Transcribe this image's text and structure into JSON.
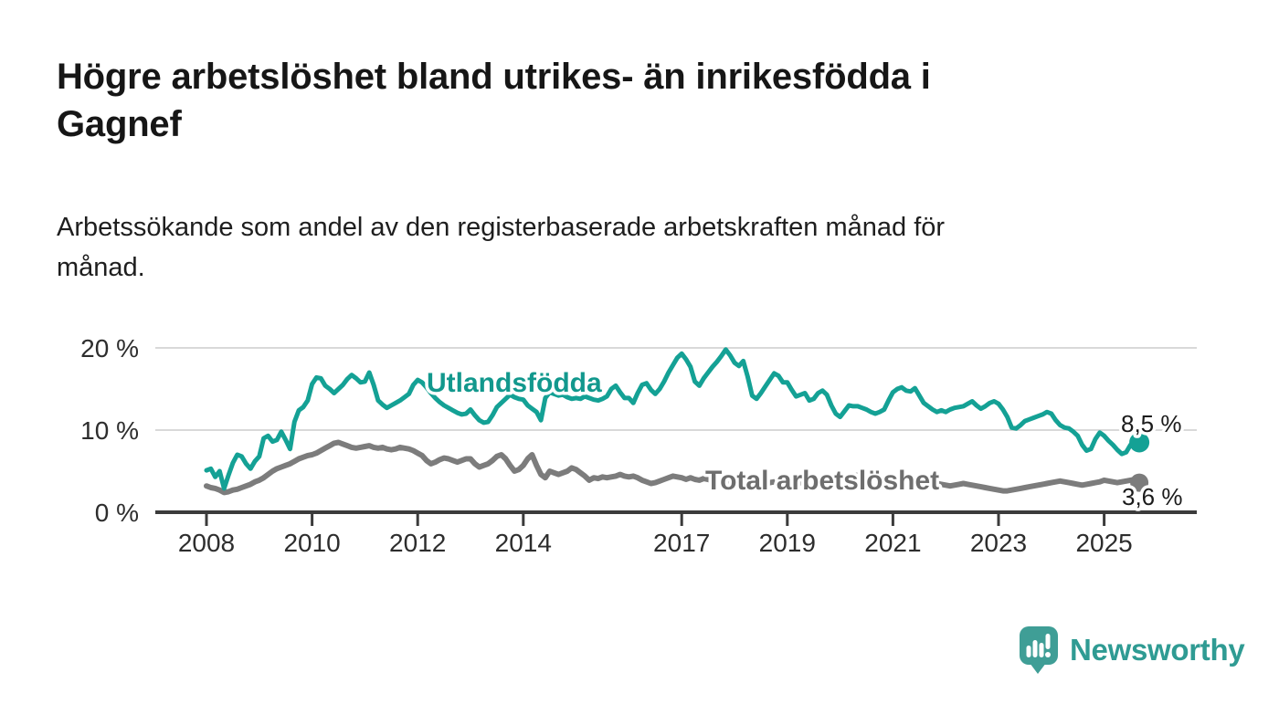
{
  "header": {
    "title_line1": "Högre arbetslöshet bland utrikes- än inrikesfödda i",
    "title_line2": "Gagnef",
    "subtitle_line1": "Arbetssökande som andel av den registerbaserade arbetskraften månad för",
    "subtitle_line2": "månad."
  },
  "footer": {
    "brand": "Newsworthy"
  },
  "colors": {
    "teal_line": "#14A195",
    "teal_label": "#12988D",
    "gray_line": "#7C7C7C",
    "gray_label": "#6E6E6E",
    "axis": "#3B3B3B",
    "grid": "#D9D9D9",
    "logo_bubble": "#3F9E96",
    "logo_text": "#2F9B93"
  },
  "chart_data": {
    "type": "line",
    "title": "Högre arbetslöshet bland utrikes- än inrikesfödda i Gagnef",
    "subtitle": "Arbetssökande som andel av den registerbaserade arbetskraften månad för månad.",
    "xlabel": "",
    "ylabel": "",
    "ylim": [
      0,
      20
    ],
    "grid": "horizontal",
    "x_unit": "month",
    "x_start_year": 2008,
    "x_end": "2025-09",
    "x_ticks": [
      {
        "year": 2008,
        "label": "2008"
      },
      {
        "year": 2010,
        "label": "2010"
      },
      {
        "year": 2012,
        "label": "2012"
      },
      {
        "year": 2014,
        "label": "2014"
      },
      {
        "year": 2017,
        "label": "2017"
      },
      {
        "year": 2019,
        "label": "2019"
      },
      {
        "year": 2021,
        "label": "2021"
      },
      {
        "year": 2023,
        "label": "2023"
      },
      {
        "year": 2025,
        "label": "2025"
      }
    ],
    "y_ticks": [
      {
        "value": 0,
        "label": "0 %"
      },
      {
        "value": 10,
        "label": "10 %"
      },
      {
        "value": 20,
        "label": "20 %"
      }
    ],
    "series": [
      {
        "name": "Utlandsfödda",
        "color": "#14A195",
        "end_label": "8,5 %",
        "end_value": 8.5,
        "values": [
          5.1,
          5.3,
          4.3,
          5.0,
          2.9,
          4.5,
          6.0,
          7.0,
          6.8,
          5.9,
          5.3,
          6.2,
          6.8,
          9.0,
          9.3,
          8.6,
          8.8,
          9.8,
          8.8,
          7.7,
          11.0,
          12.4,
          12.8,
          13.6,
          15.6,
          16.4,
          16.3,
          15.4,
          15.0,
          14.5,
          15.0,
          15.5,
          16.2,
          16.7,
          16.3,
          15.8,
          15.9,
          17.0,
          15.5,
          13.6,
          13.1,
          12.7,
          13.0,
          13.3,
          13.6,
          14.0,
          14.4,
          15.5,
          16.1,
          15.8,
          15.2,
          14.5,
          13.9,
          13.4,
          13.0,
          12.7,
          12.4,
          12.1,
          11.9,
          12.0,
          12.5,
          11.8,
          11.2,
          10.9,
          11.0,
          11.8,
          12.8,
          13.3,
          13.8,
          14.3,
          14.0,
          13.8,
          13.7,
          13.0,
          12.6,
          12.2,
          11.2,
          13.9,
          14.6,
          14.4,
          14.2,
          14.3,
          14.0,
          13.8,
          13.9,
          13.8,
          14.1,
          13.9,
          13.7,
          13.6,
          13.8,
          14.1,
          15.0,
          15.4,
          14.6,
          13.9,
          13.9,
          13.3,
          14.5,
          15.5,
          15.7,
          14.9,
          14.4,
          15.0,
          15.9,
          17.0,
          17.9,
          18.8,
          19.3,
          18.6,
          17.7,
          15.9,
          15.4,
          16.3,
          17.0,
          17.7,
          18.3,
          19.0,
          19.8,
          19.1,
          18.2,
          17.8,
          18.4,
          16.5,
          14.2,
          13.8,
          14.5,
          15.3,
          16.1,
          16.9,
          16.6,
          15.8,
          15.8,
          14.9,
          14.1,
          14.3,
          14.5,
          13.6,
          13.8,
          14.5,
          14.8,
          14.3,
          13.0,
          12.0,
          11.6,
          12.3,
          13.0,
          12.9,
          12.9,
          12.7,
          12.5,
          12.2,
          12.0,
          12.2,
          12.5,
          13.6,
          14.6,
          15.0,
          15.2,
          14.8,
          14.7,
          15.1,
          14.2,
          13.3,
          12.9,
          12.5,
          12.2,
          12.4,
          12.2,
          12.5,
          12.7,
          12.8,
          12.9,
          13.2,
          13.5,
          13.0,
          12.6,
          12.9,
          13.3,
          13.5,
          13.2,
          12.5,
          11.6,
          10.3,
          10.2,
          10.6,
          11.1,
          11.3,
          11.5,
          11.7,
          11.9,
          12.2,
          12.0,
          11.2,
          10.6,
          10.3,
          10.2,
          9.8,
          9.3,
          8.2,
          7.5,
          7.7,
          8.9,
          9.7,
          9.3,
          8.7,
          8.2,
          7.6,
          7.1,
          7.3,
          8.2,
          8.4,
          8.5
        ]
      },
      {
        "name": "Total arbetslöshet",
        "color": "#7C7C7C",
        "end_label": "3,6 %",
        "end_value": 3.6,
        "values": [
          3.2,
          3.0,
          2.9,
          2.7,
          2.4,
          2.5,
          2.7,
          2.8,
          3.0,
          3.2,
          3.4,
          3.7,
          3.9,
          4.2,
          4.6,
          5.0,
          5.3,
          5.5,
          5.7,
          5.9,
          6.2,
          6.5,
          6.7,
          6.9,
          7.0,
          7.2,
          7.5,
          7.8,
          8.1,
          8.4,
          8.5,
          8.3,
          8.1,
          7.9,
          7.8,
          7.9,
          8.0,
          8.1,
          7.9,
          7.8,
          7.9,
          7.7,
          7.6,
          7.7,
          7.9,
          7.8,
          7.7,
          7.5,
          7.2,
          6.9,
          6.3,
          5.9,
          6.1,
          6.4,
          6.6,
          6.5,
          6.3,
          6.1,
          6.3,
          6.5,
          6.5,
          5.9,
          5.5,
          5.7,
          5.9,
          6.3,
          6.8,
          7.0,
          6.5,
          5.7,
          5.0,
          5.2,
          5.7,
          6.5,
          7.0,
          5.7,
          4.6,
          4.2,
          5.0,
          4.8,
          4.6,
          4.8,
          5.0,
          5.4,
          5.2,
          4.8,
          4.4,
          3.9,
          4.2,
          4.1,
          4.3,
          4.2,
          4.3,
          4.4,
          4.6,
          4.4,
          4.3,
          4.4,
          4.2,
          3.9,
          3.7,
          3.5,
          3.6,
          3.8,
          4.0,
          4.2,
          4.4,
          4.3,
          4.2,
          4.0,
          4.2,
          4.0,
          3.9,
          4.1,
          4.0,
          3.8,
          3.7,
          3.6,
          3.7,
          3.8,
          3.7,
          3.6,
          3.5,
          3.5,
          3.6,
          3.5,
          3.4,
          3.5,
          3.6,
          3.7,
          3.6,
          3.5,
          3.5,
          3.4,
          3.5,
          3.6,
          3.5,
          3.6,
          3.7,
          3.6,
          3.5,
          3.6,
          3.7,
          3.8,
          3.9,
          4.0,
          4.2,
          4.4,
          4.5,
          4.4,
          4.3,
          4.2,
          4.1,
          4.0,
          3.9,
          3.8,
          3.8,
          3.7,
          3.6,
          3.5,
          3.6,
          3.5,
          3.4,
          3.5,
          3.4,
          3.5,
          3.5,
          3.4,
          3.3,
          3.2,
          3.3,
          3.4,
          3.5,
          3.4,
          3.3,
          3.2,
          3.1,
          3.0,
          2.9,
          2.8,
          2.7,
          2.6,
          2.6,
          2.7,
          2.8,
          2.9,
          3.0,
          3.1,
          3.2,
          3.3,
          3.4,
          3.5,
          3.6,
          3.7,
          3.8,
          3.7,
          3.6,
          3.5,
          3.4,
          3.3,
          3.4,
          3.5,
          3.6,
          3.7,
          3.9,
          3.8,
          3.7,
          3.6,
          3.7,
          3.8,
          3.9,
          4.0,
          3.6
        ]
      }
    ],
    "legend_position": "inline-labels"
  }
}
